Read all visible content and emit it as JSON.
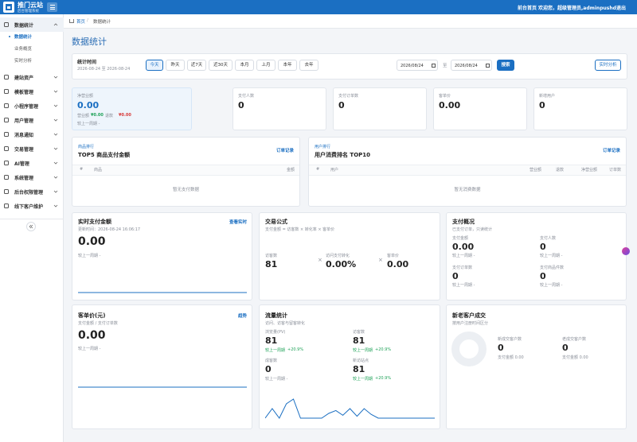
{
  "header": {
    "logo_title": "推门云站",
    "logo_subtitle": "后台管理系统",
    "links": [
      "前台首页",
      "欢迎您，超级管理员,adminpushd",
      "退出"
    ]
  },
  "sidebar": {
    "menu": [
      {
        "label": "数据统计",
        "children": [
          "数据统计",
          "业务概览",
          "实时分析"
        ]
      },
      {
        "label": "建站资产"
      },
      {
        "label": "模板管理"
      },
      {
        "label": "小程序管理"
      },
      {
        "label": "用户管理"
      },
      {
        "label": "消息通知"
      },
      {
        "label": "交易管理"
      },
      {
        "label": "AI管理"
      },
      {
        "label": "系统管理"
      },
      {
        "label": "后台权限管理"
      },
      {
        "label": "线下客户维护"
      }
    ]
  },
  "breadcrumb": {
    "items": [
      "首页",
      "数据统计"
    ],
    "separator": "/"
  },
  "page_title": "数据统计",
  "filter": {
    "label": "统计时间",
    "range": "2026-08-24 至 2026-08-24",
    "buttons": [
      "今天",
      "昨天",
      "近7天",
      "近30天",
      "本月",
      "上月",
      "本年",
      "去年"
    ],
    "start_date": "2026/08/24",
    "separator": "至",
    "end_date": "2026/08/24",
    "search": "搜索",
    "realtime": "实时分析"
  },
  "kpis": [
    {
      "label": "净营业额",
      "value": "0.00",
      "sub": [
        {
          "label": "营业额",
          "value": "¥0.00"
        },
        {
          "label": "退款",
          "value": "¥0.00"
        }
      ],
      "compare": "较上一周期 -"
    },
    {
      "label": "支付人数",
      "value": "0"
    },
    {
      "label": "支付订单数",
      "value": "0"
    },
    {
      "label": "客单价",
      "value": "0.00"
    },
    {
      "label": "新增用户",
      "value": "0"
    }
  ],
  "rankings": [
    {
      "tag": "商品排行",
      "title": "TOP5 商品支付金额",
      "link": "订单记录",
      "columns": [
        "#",
        "商品",
        "金额"
      ],
      "empty": "暂无支付数据"
    },
    {
      "tag": "用户排行",
      "title": "用户消费排名 TOP10",
      "link": "订单记录",
      "columns": [
        "#",
        "用户",
        "营业额",
        "退款",
        "净营业额",
        "订单数"
      ],
      "empty": "暂无消费数据"
    }
  ],
  "realtime": {
    "title": "实时支付金额",
    "link": "查看实时",
    "updated": "更新时间：2026-08-24 16:06:17",
    "value": "0.00",
    "compare": "较上一周期 -",
    "trend": [
      0,
      0,
      0,
      0,
      0,
      0,
      0,
      0,
      0,
      0,
      0,
      0
    ]
  },
  "formula": {
    "title": "交易公式",
    "subtitle": "支付金额 = 访客数 × 转化率 × 客单价",
    "operator": "×",
    "items": [
      {
        "label": "访客数",
        "value": "81"
      },
      {
        "label": "访问支付转化",
        "value": "0.00%"
      },
      {
        "label": "客单价",
        "value": "0.00"
      }
    ]
  },
  "pay_overview": {
    "title": "支付概况",
    "subtitle": "已支付订单，只读统计",
    "items": [
      {
        "label": "支付金额",
        "value": "0.00",
        "compare": "较上一周期 -"
      },
      {
        "label": "支付人数",
        "value": "0",
        "compare": "较上一周期 -"
      },
      {
        "label": "支付订单数",
        "value": "0",
        "compare": "较上一周期 -"
      },
      {
        "label": "支付商品件数",
        "value": "0",
        "compare": "较上一周期 -"
      }
    ]
  },
  "avg_price": {
    "title": "客单价(元)",
    "link": "趋势",
    "subtitle": "支付金额 / 支付订单数",
    "value": "0.00",
    "compare": "较上一周期 -",
    "trend": [
      0,
      0,
      0,
      0,
      0,
      0,
      0,
      0,
      0,
      0,
      0,
      0
    ]
  },
  "traffic": {
    "title": "流量统计",
    "subtitle": "访问、访客与留客转化",
    "items": [
      {
        "label": "浏览量(PV)",
        "value": "81",
        "compare": "较上一周期",
        "change": "+20.9%"
      },
      {
        "label": "访客数",
        "value": "81",
        "compare": "较上一周期",
        "change": "+20.9%"
      },
      {
        "label": "成客数",
        "value": "0",
        "compare": "较上一周期 -"
      },
      {
        "label": "新访站点",
        "value": "81",
        "compare": "较上一周期",
        "change": "+20.9%"
      }
    ],
    "trend": [
      0,
      1,
      0,
      1.5,
      2,
      0,
      0,
      0,
      0,
      0.5,
      0.8,
      0.3,
      1,
      0.2,
      1,
      0.4,
      0,
      0,
      0,
      0,
      0,
      0,
      0,
      0,
      0
    ]
  },
  "customers": {
    "title": "新老客户成交",
    "subtitle": "按用户注册时间区分",
    "items": [
      {
        "label": "新成交客户数",
        "value": "0",
        "amount": "支付金额 0.00"
      },
      {
        "label": "老成交客户数",
        "value": "0",
        "amount": "支付金额 0.00"
      }
    ]
  }
}
